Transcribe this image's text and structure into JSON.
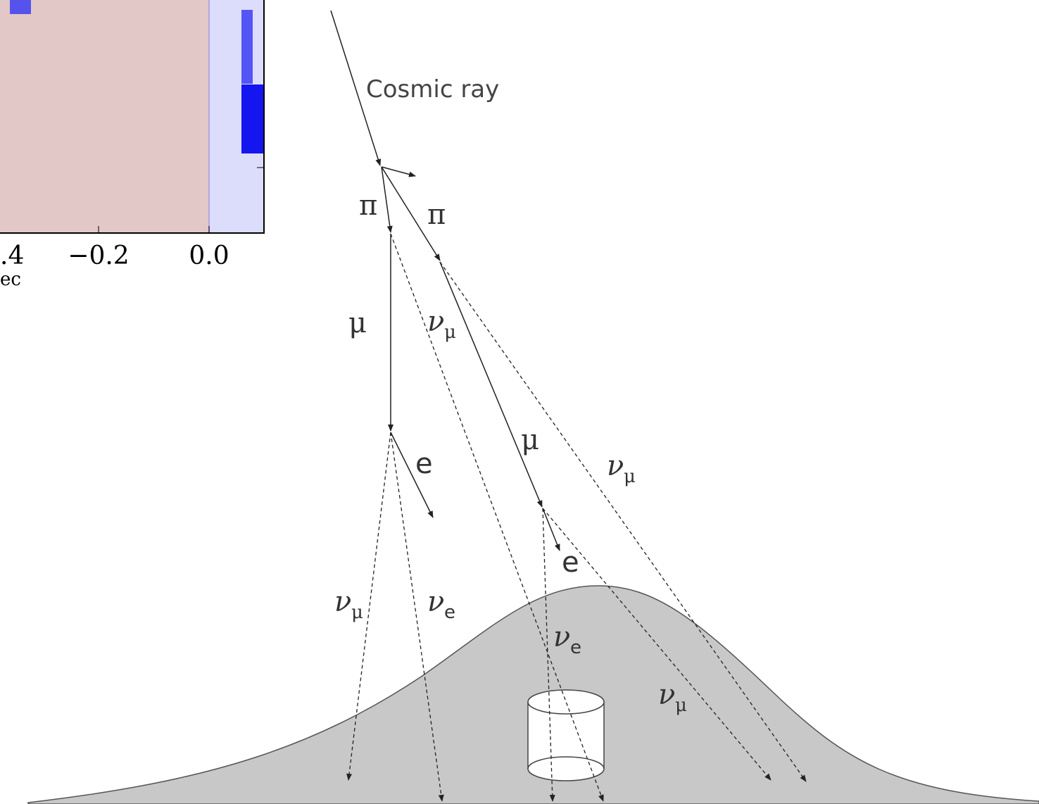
{
  "chart_fragment": {
    "tick_labels": [
      "−0.2",
      "0.0"
    ],
    "cut_tick_label": ".4",
    "cut_axis_label": "ec"
  },
  "title_label": "Cosmic ray",
  "labels": [
    {
      "text": "π"
    },
    {
      "text": "π"
    },
    {
      "text": "μ"
    },
    {
      "text": "ν",
      "sub": "μ"
    },
    {
      "text": "μ"
    },
    {
      "text": "ν",
      "sub": "μ"
    },
    {
      "text": "e"
    },
    {
      "text": "e"
    },
    {
      "text": "ν",
      "sub": "μ"
    },
    {
      "text": "ν",
      "sub": "e"
    },
    {
      "text": "ν",
      "sub": "e"
    },
    {
      "text": "ν",
      "sub": "μ"
    }
  ]
}
